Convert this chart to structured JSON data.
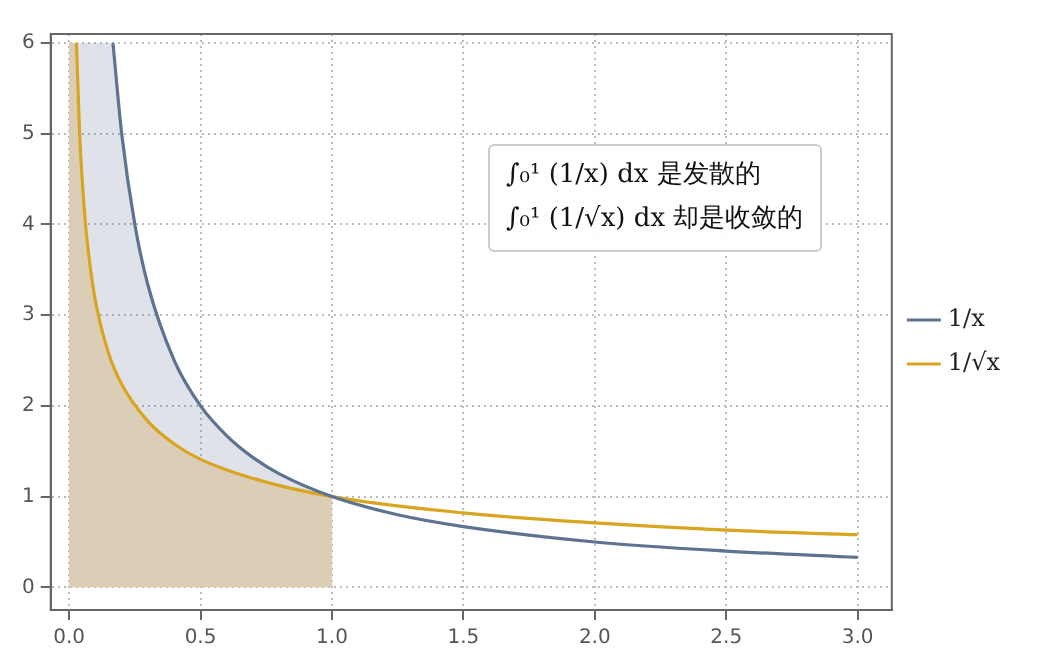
{
  "chart_data": {
    "type": "line",
    "xlim": [
      -0.07,
      3.13
    ],
    "ylim": [
      -0.25,
      6.1
    ],
    "xticks": [
      {
        "value": 0,
        "label": "0.0"
      },
      {
        "value": 0.5,
        "label": "0.5"
      },
      {
        "value": 1,
        "label": "1.0"
      },
      {
        "value": 1.5,
        "label": "1.5"
      },
      {
        "value": 2,
        "label": "2.0"
      },
      {
        "value": 2.5,
        "label": "2.5"
      },
      {
        "value": 3,
        "label": "3.0"
      }
    ],
    "yticks": [
      0,
      1,
      2,
      3,
      4,
      5,
      6
    ],
    "grid": true,
    "legend": "right",
    "annotations": [
      "∫₀¹ (1/x) dx 是发散的",
      "∫₀¹ (1/√x) dx 却是收敛的"
    ],
    "series": [
      {
        "type": "area",
        "color": "#dccdb6",
        "x": [
          0,
          0.028,
          0.04,
          0.06,
          0.1,
          0.15,
          0.2,
          0.3,
          0.4,
          0.5,
          0.7,
          1,
          1
        ],
        "values": [
          6,
          6,
          5,
          4.08,
          3.16,
          2.58,
          2.24,
          1.83,
          1.58,
          1.41,
          1.2,
          1,
          0
        ]
      },
      {
        "name": "1/x",
        "color": "#5e7391",
        "x": [
          0.028,
          0.06,
          0.1,
          0.1667,
          0.2,
          0.25,
          0.3,
          0.4,
          0.5,
          0.6,
          0.7,
          0.8,
          1,
          1.25,
          1.5,
          2,
          2.5,
          3
        ],
        "values": [
          null,
          null,
          null,
          6,
          5,
          4,
          3.33,
          2.5,
          2,
          1.67,
          1.43,
          1.25,
          1,
          0.8,
          0.67,
          0.5,
          0.4,
          0.33
        ],
        "upper": [
          6,
          6,
          6,
          6,
          5,
          4,
          3.33,
          2.5,
          2,
          1.67,
          1.43,
          1.25,
          1,
          null,
          null,
          null,
          null,
          null
        ],
        "lower": [
          6,
          4.08,
          3.16,
          2.45,
          2.24,
          2,
          1.83,
          1.58,
          1.41,
          1.29,
          1.2,
          1.12,
          1,
          null,
          null,
          null,
          null,
          null
        ]
      },
      {
        "name": "1/√x",
        "color": "#d9a520",
        "x": [
          0.028,
          0.04,
          0.06,
          0.08,
          0.1,
          0.15,
          0.2,
          0.3,
          0.4,
          0.5,
          0.7,
          1,
          1.5,
          2,
          2.5,
          3
        ],
        "values": [
          6,
          5,
          4.08,
          3.54,
          3.16,
          2.58,
          2.24,
          1.83,
          1.58,
          1.41,
          1.2,
          1,
          0.82,
          0.71,
          0.63,
          0.58
        ]
      }
    ]
  }
}
